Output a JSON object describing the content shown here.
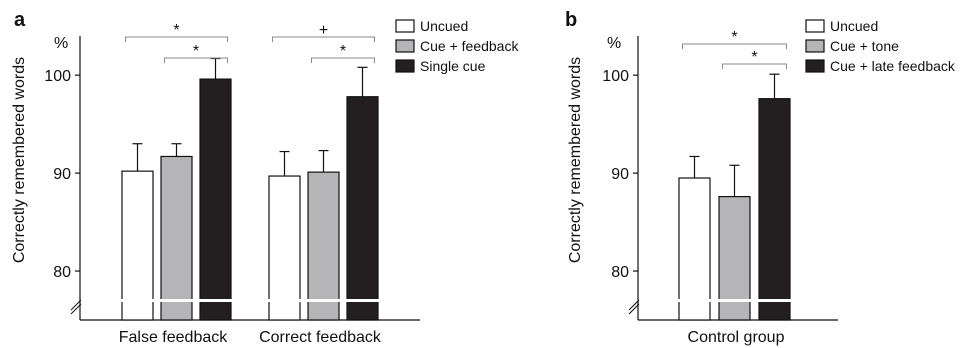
{
  "chart_data": [
    {
      "type": "bar",
      "panel": "a",
      "ylabel": "Correctly remembered words",
      "yunit": "%",
      "ylim": [
        75,
        104
      ],
      "yticks": [
        80,
        90,
        100
      ],
      "categories": [
        "False feedback",
        "Correct feedback"
      ],
      "series": [
        {
          "name": "Uncued",
          "values": [
            90.2,
            89.7
          ],
          "errors": [
            2.8,
            2.5
          ],
          "color": "#ffffff"
        },
        {
          "name": "Cue + feedback",
          "values": [
            91.7,
            90.1
          ],
          "errors": [
            1.3,
            2.2
          ],
          "color": "#b5b5b7"
        },
        {
          "name": "Single cue",
          "values": [
            99.6,
            97.8
          ],
          "errors": [
            2.1,
            3.0
          ],
          "color": "#231f20"
        }
      ],
      "significance": [
        {
          "category": "False feedback",
          "from": "Uncued",
          "to": "Single cue",
          "label": "*"
        },
        {
          "category": "False feedback",
          "from": "Cue + feedback",
          "to": "Single cue",
          "label": "*"
        },
        {
          "category": "Correct feedback",
          "from": "Uncued",
          "to": "Single cue",
          "label": "+"
        },
        {
          "category": "Correct feedback",
          "from": "Cue + feedback",
          "to": "Single cue",
          "label": "*"
        }
      ],
      "legend_position": "top-right",
      "grid": false,
      "axis_break": true
    },
    {
      "type": "bar",
      "panel": "b",
      "ylabel": "Correctly remembered words",
      "yunit": "%",
      "ylim": [
        75,
        104
      ],
      "yticks": [
        80,
        90,
        100
      ],
      "categories": [
        "Control group"
      ],
      "series": [
        {
          "name": "Uncued",
          "values": [
            89.5
          ],
          "errors": [
            2.2
          ],
          "color": "#ffffff"
        },
        {
          "name": "Cue + tone",
          "values": [
            87.6
          ],
          "errors": [
            3.2
          ],
          "color": "#b5b5b7"
        },
        {
          "name": "Cue + late feedback",
          "values": [
            97.6
          ],
          "errors": [
            2.5
          ],
          "color": "#231f20"
        }
      ],
      "significance": [
        {
          "category": "Control group",
          "from": "Uncued",
          "to": "Cue + late feedback",
          "label": "*"
        },
        {
          "category": "Control group",
          "from": "Cue + tone",
          "to": "Cue + late feedback",
          "label": "*"
        }
      ],
      "legend_position": "top-right",
      "grid": false,
      "axis_break": true
    }
  ]
}
